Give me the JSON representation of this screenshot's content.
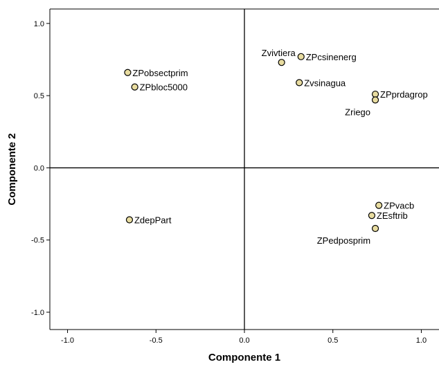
{
  "chart_data": {
    "type": "scatter",
    "xlabel": "Componente 1",
    "ylabel": "Componente 2",
    "xlim": [
      -1.1,
      1.1
    ],
    "ylim": [
      -1.12,
      1.1
    ],
    "xticks": [
      -1.0,
      -0.5,
      0.0,
      0.5,
      1.0
    ],
    "yticks": [
      -1.0,
      -0.5,
      0.0,
      0.5,
      1.0
    ],
    "xtick_labels": [
      "-1.0",
      "-0.5",
      "0.0",
      "0.5",
      "1.0"
    ],
    "ytick_labels": [
      "-1.0",
      "-0.5",
      "0.0",
      "0.5",
      "1.0"
    ],
    "reference_lines": {
      "x": 0.0,
      "y": 0.0
    },
    "grid": false,
    "marker_color": "#e8dca0",
    "marker_edge_color": "#000000",
    "points": [
      {
        "label": "ZPobsectprim",
        "x": -0.66,
        "y": 0.66,
        "label_pos": "right"
      },
      {
        "label": "ZPbloc5000",
        "x": -0.62,
        "y": 0.56,
        "label_pos": "right"
      },
      {
        "label": "Zvivtiera",
        "x": 0.21,
        "y": 0.73,
        "label_pos": "above"
      },
      {
        "label": "ZPcsinenerg",
        "x": 0.32,
        "y": 0.77,
        "label_pos": "right"
      },
      {
        "label": "Zvsinagua",
        "x": 0.31,
        "y": 0.59,
        "label_pos": "right"
      },
      {
        "label": "ZPprdagrop",
        "x": 0.74,
        "y": 0.51,
        "label_pos": "right"
      },
      {
        "label": "Zriego",
        "x": 0.74,
        "y": 0.47,
        "label_pos": "below-left"
      },
      {
        "label": "ZdepPart",
        "x": -0.65,
        "y": -0.36,
        "label_pos": "right"
      },
      {
        "label": "ZPvacb",
        "x": 0.76,
        "y": -0.26,
        "label_pos": "right"
      },
      {
        "label": "ZEsftrib",
        "x": 0.72,
        "y": -0.33,
        "label_pos": "right"
      },
      {
        "label": "ZPedposprim",
        "x": 0.74,
        "y": -0.42,
        "label_pos": "below-left"
      }
    ]
  }
}
